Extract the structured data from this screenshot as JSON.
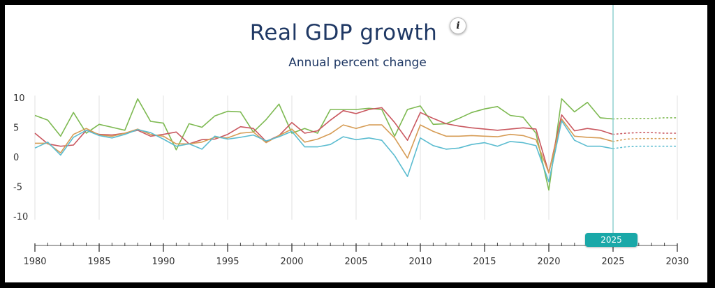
{
  "title": "Real GDP growth",
  "subtitle": "Annual percent change",
  "info_label": "i",
  "selected_year": "2025",
  "colors": {
    "green": "#7db951",
    "red": "#c9575f",
    "orange": "#d69c55",
    "blue": "#5bbcd0",
    "cursor": "#8fd0cf",
    "badge": "#1aa8a8"
  },
  "chart_data": {
    "type": "line",
    "y_ticks": [
      "10",
      "5",
      "0",
      "-5",
      "-10"
    ],
    "x_ticks": [
      "1980",
      "1985",
      "1990",
      "1995",
      "2000",
      "2005",
      "2010",
      "2015",
      "2020",
      "2025",
      "2030"
    ],
    "ylim": [
      -10,
      10
    ],
    "xlim": [
      1980,
      2030
    ],
    "grid": true,
    "legend": "none",
    "x": [
      1980,
      1981,
      1982,
      1983,
      1984,
      1985,
      1986,
      1987,
      1988,
      1989,
      1990,
      1991,
      1992,
      1993,
      1994,
      1995,
      1996,
      1997,
      1998,
      1999,
      2000,
      2001,
      2002,
      2003,
      2004,
      2005,
      2006,
      2007,
      2008,
      2009,
      2010,
      2011,
      2012,
      2013,
      2014,
      2015,
      2016,
      2017,
      2018,
      2019,
      2020,
      2021,
      2022,
      2023,
      2024,
      2025
    ],
    "projection_x": [
      2025,
      2026,
      2027,
      2028,
      2029,
      2030
    ],
    "series": [
      {
        "color": "green",
        "values": [
          7.0,
          6.2,
          3.5,
          7.5,
          4.0,
          5.5,
          5.0,
          4.5,
          9.8,
          6.0,
          5.7,
          1.2,
          5.6,
          5.0,
          6.9,
          7.7,
          7.6,
          4.2,
          6.3,
          8.9,
          4.0,
          4.8,
          4.0,
          8.0,
          8.0,
          8.0,
          8.2,
          8.0,
          3.5,
          8.0,
          8.6,
          5.5,
          5.6,
          6.5,
          7.5,
          8.1,
          8.5,
          7.0,
          6.7,
          4.0,
          -5.6,
          9.8,
          7.6,
          9.2,
          6.6,
          6.4
        ],
        "projection": [
          6.4,
          6.5,
          6.5,
          6.5,
          6.6,
          6.6
        ]
      },
      {
        "color": "red",
        "values": [
          4.0,
          2.2,
          1.8,
          2.0,
          4.5,
          3.8,
          3.7,
          4.0,
          4.5,
          3.5,
          3.8,
          4.2,
          2.2,
          2.9,
          3.0,
          3.8,
          5.1,
          4.8,
          2.6,
          3.6,
          5.8,
          4.0,
          4.4,
          6.2,
          7.8,
          7.3,
          8.0,
          8.3,
          5.8,
          2.8,
          7.5,
          6.5,
          5.6,
          5.2,
          4.9,
          4.7,
          4.5,
          4.7,
          4.9,
          4.7,
          -2.7,
          7.1,
          4.4,
          4.8,
          4.5,
          3.8
        ],
        "projection": [
          3.8,
          4.0,
          4.1,
          4.1,
          4.0,
          4.0
        ]
      },
      {
        "color": "orange",
        "values": [
          2.3,
          2.3,
          0.7,
          3.8,
          4.8,
          3.7,
          3.5,
          4.0,
          4.7,
          3.8,
          3.5,
          2.2,
          2.2,
          2.5,
          3.3,
          3.2,
          4.0,
          4.2,
          2.4,
          3.6,
          4.7,
          2.5,
          3.0,
          3.9,
          5.4,
          4.8,
          5.4,
          5.4,
          3.2,
          -0.2,
          5.4,
          4.3,
          3.5,
          3.5,
          3.6,
          3.5,
          3.4,
          3.8,
          3.6,
          2.9,
          -2.7,
          6.4,
          3.5,
          3.3,
          3.2,
          2.6
        ],
        "projection": [
          2.6,
          3.0,
          3.1,
          3.1,
          3.1,
          3.1
        ]
      },
      {
        "color": "blue",
        "values": [
          1.5,
          2.5,
          0.3,
          3.3,
          4.5,
          3.6,
          3.2,
          3.8,
          4.6,
          4.1,
          3.0,
          1.8,
          2.2,
          1.3,
          3.5,
          3.0,
          3.3,
          3.7,
          2.7,
          3.4,
          4.3,
          1.7,
          1.7,
          2.1,
          3.4,
          2.9,
          3.2,
          2.8,
          0.2,
          -3.3,
          3.2,
          1.9,
          1.3,
          1.5,
          2.1,
          2.4,
          1.8,
          2.6,
          2.4,
          1.9,
          -4.2,
          6.1,
          2.8,
          1.8,
          1.8,
          1.4
        ],
        "projection": [
          1.4,
          1.7,
          1.8,
          1.8,
          1.8,
          1.8
        ]
      }
    ]
  }
}
